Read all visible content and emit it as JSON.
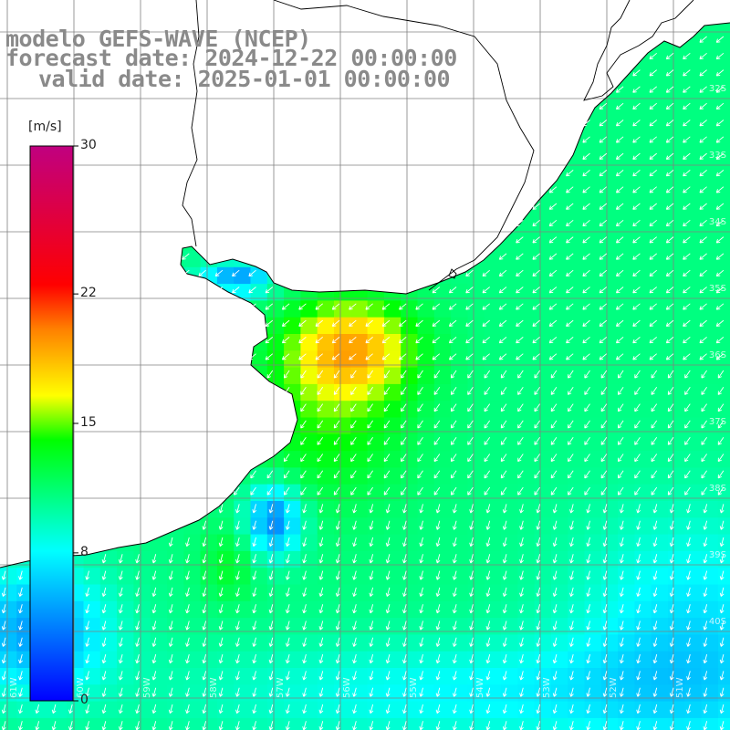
{
  "header": {
    "model_line": "modelo GEFS-WAVE (NCEP)",
    "forecast_line": "forecast date: 2024-12-22 00:00:00",
    "valid_line": "valid date: 2025-01-01 00:00:00"
  },
  "legend": {
    "unit": "[m/s]",
    "tick_labels": [
      "30",
      "22",
      "15",
      "8",
      "0"
    ],
    "tick_values": [
      30,
      22,
      15,
      8,
      0
    ],
    "range": [
      0,
      30
    ],
    "colors": [
      "#0000ff",
      "#00ffff",
      "#00ff00",
      "#ffff00",
      "#ff8000",
      "#ff0000",
      "#c00080"
    ]
  },
  "map": {
    "lat_labels": [
      "32S",
      "33S",
      "34S",
      "35S",
      "36S",
      "37S",
      "38S",
      "39S",
      "40S"
    ],
    "lon_labels": [
      "61W",
      "60W",
      "59W",
      "58W",
      "57W",
      "56W",
      "55W",
      "54W",
      "53W",
      "52W",
      "51W"
    ],
    "land_color": "#ffffff",
    "grid_color": "#808080"
  }
}
